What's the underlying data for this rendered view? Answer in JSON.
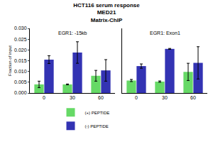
{
  "chart_data": {
    "type": "bar",
    "title": "HCT116 serum response",
    "subtitle": [
      "MED21",
      "Matrix-ChIP"
    ],
    "y_label": "Fraction of input",
    "ylim": [
      0,
      0.03
    ],
    "yticks": [
      {
        "value": 0,
        "label": "0.000"
      },
      {
        "value": 0.005,
        "label": "0.005"
      },
      {
        "value": 0.01,
        "label": "0.010"
      },
      {
        "value": 0.015,
        "label": "0.015"
      },
      {
        "value": 0.02,
        "label": "0.020"
      },
      {
        "value": 0.025,
        "label": "0.025"
      },
      {
        "value": 0.03,
        "label": "0.030"
      }
    ],
    "legend": "bottom",
    "panels": [
      {
        "title": "EGR1: -15kb",
        "categories": [
          "0",
          "30",
          "60"
        ],
        "series": [
          {
            "name": "(+) PEPTIDE",
            "color": "#66d966",
            "values": [
              0.004,
              0.004,
              0.008
            ],
            "error": [
              0.0015,
              0.0002,
              0.0025
            ]
          },
          {
            "name": "(-) PEPTIDE",
            "color": "#3333b3",
            "values": [
              0.0155,
              0.0188,
              0.0105
            ],
            "error": [
              0.0018,
              0.005,
              0.005
            ]
          }
        ]
      },
      {
        "title": "EGR1: Exon1",
        "categories": [
          "0",
          "30",
          "60"
        ],
        "series": [
          {
            "name": "(+) PEPTIDE",
            "color": "#66d966",
            "values": [
              0.0058,
              0.0053,
              0.0098
            ],
            "error": [
              0.0005,
              0.0003,
              0.004
            ]
          },
          {
            "name": "(-) PEPTIDE",
            "color": "#3333b3",
            "values": [
              0.0125,
              0.0205,
              0.014
            ],
            "error": [
              0.001,
              0.0002,
              0.0075
            ]
          }
        ]
      }
    ]
  }
}
